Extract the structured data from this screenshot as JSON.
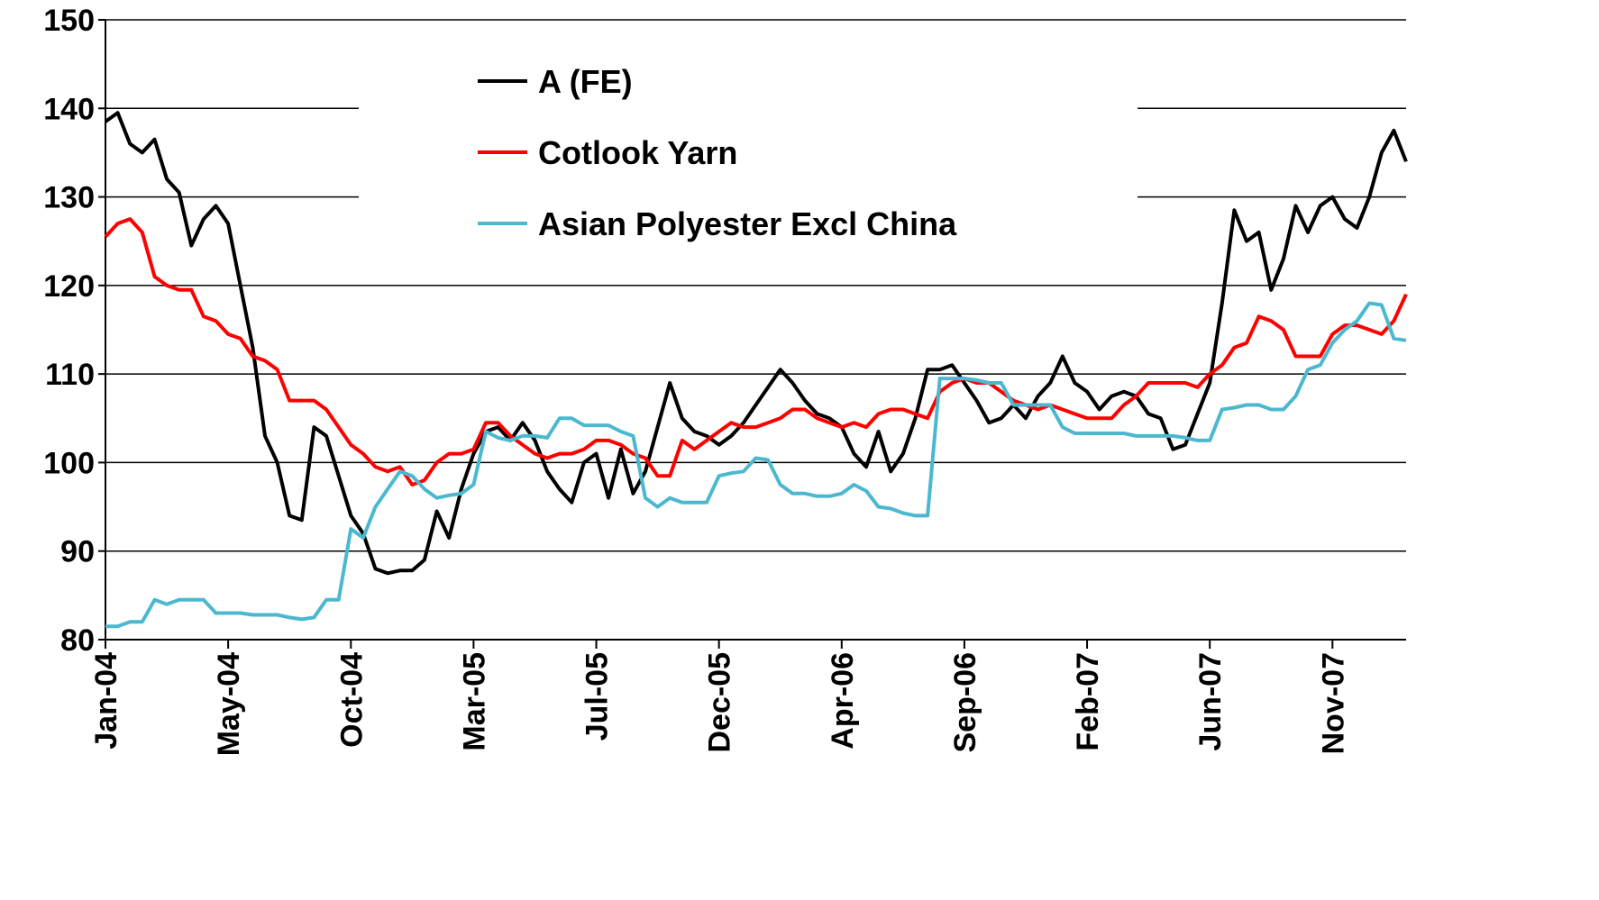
{
  "chart_data": {
    "type": "line",
    "categories": [
      "Jan-04",
      null,
      null,
      null,
      null,
      null,
      null,
      null,
      null,
      null,
      "May-04",
      null,
      null,
      null,
      null,
      null,
      null,
      null,
      null,
      null,
      "Oct-04",
      null,
      null,
      null,
      null,
      null,
      null,
      null,
      null,
      null,
      "Mar-05",
      null,
      null,
      null,
      null,
      null,
      null,
      null,
      null,
      null,
      "Jul-05",
      null,
      null,
      null,
      null,
      null,
      null,
      null,
      null,
      null,
      "Dec-05",
      null,
      null,
      null,
      null,
      null,
      null,
      null,
      null,
      null,
      "Apr-06",
      null,
      null,
      null,
      null,
      null,
      null,
      null,
      null,
      null,
      "Sep-06",
      null,
      null,
      null,
      null,
      null,
      null,
      null,
      null,
      null,
      "Feb-07",
      null,
      null,
      null,
      null,
      null,
      null,
      null,
      null,
      null,
      "Jun-07",
      null,
      null,
      null,
      null,
      null,
      null,
      null,
      null,
      null,
      "Nov-07",
      null,
      null,
      null,
      null,
      null,
      null
    ],
    "series": [
      {
        "name": "A (FE)",
        "color": "#000000",
        "values": [
          138.5,
          139.5,
          136,
          135,
          136.5,
          132,
          130.5,
          124.5,
          127.5,
          129,
          127,
          120,
          113,
          103,
          100,
          94,
          93.5,
          104,
          103,
          98.5,
          94,
          92,
          88,
          87.5,
          87.8,
          87.8,
          89,
          94.5,
          91.5,
          97,
          101,
          103.5,
          104,
          102.5,
          104.5,
          102.5,
          99,
          97,
          95.5,
          100,
          101,
          96,
          101.5,
          96.5,
          99,
          104,
          109,
          105,
          103.5,
          103,
          102,
          103,
          104.5,
          106.5,
          108.5,
          110.5,
          109,
          107,
          105.5,
          105,
          104,
          101,
          99.5,
          103.5,
          99,
          101,
          105,
          110.5,
          110.5,
          111,
          109,
          107,
          104.5,
          105,
          106.5,
          105,
          107.5,
          109,
          112,
          109,
          108,
          106,
          107.5,
          108,
          107.5,
          105.5,
          105,
          101.5,
          102,
          105.5,
          109,
          118,
          128.5,
          125,
          126,
          119.5,
          123,
          129,
          126,
          129,
          130,
          127.5,
          126.5,
          130,
          135,
          137.5,
          134
        ]
      },
      {
        "name": "Cotlook Yarn",
        "color": "#ff0000",
        "values": [
          125.5,
          127,
          127.5,
          126,
          121,
          120,
          119.5,
          119.5,
          116.5,
          116,
          114.5,
          114,
          112,
          111.5,
          110.5,
          107,
          107,
          107,
          106,
          104,
          102,
          101,
          99.5,
          99,
          99.5,
          97.5,
          98,
          100,
          101,
          101,
          101.5,
          104.5,
          104.5,
          103,
          102,
          101,
          100.5,
          101,
          101,
          101.5,
          102.5,
          102.5,
          102,
          101,
          100.5,
          98.5,
          98.5,
          102.5,
          101.5,
          102.5,
          103.5,
          104.5,
          104,
          104,
          104.5,
          105,
          106,
          106,
          105,
          104.5,
          104,
          104.5,
          104,
          105.5,
          106,
          106,
          105.5,
          105,
          108,
          109,
          109.5,
          109,
          109,
          108,
          107,
          106.5,
          106,
          106.5,
          106,
          105.5,
          105,
          105,
          105,
          106.5,
          107.5,
          109,
          109,
          109,
          109,
          108.5,
          110,
          111,
          113,
          113.5,
          116.5,
          116,
          115,
          112,
          112,
          112,
          114.5,
          115.5,
          115.5,
          115,
          114.5,
          116,
          119
        ]
      },
      {
        "name": "Asian Polyester Excl China",
        "color": "#4bb8d0",
        "values": [
          81.5,
          81.5,
          82,
          82,
          84.5,
          84,
          84.5,
          84.5,
          84.5,
          83,
          83,
          83,
          82.8,
          82.8,
          82.8,
          82.5,
          82.3,
          82.5,
          84.5,
          84.5,
          92.5,
          91.5,
          95,
          97,
          99,
          98.5,
          97,
          96,
          96.3,
          96.5,
          97.5,
          103.5,
          102.8,
          102.5,
          103,
          103,
          102.8,
          105,
          105,
          104.2,
          104.2,
          104.2,
          103.5,
          103,
          96,
          95,
          96,
          95.5,
          95.5,
          95.5,
          98.5,
          98.8,
          99,
          100.5,
          100.3,
          97.5,
          96.5,
          96.5,
          96.2,
          96.2,
          96.5,
          97.5,
          96.8,
          95,
          94.8,
          94.3,
          94,
          94,
          109.5,
          109.5,
          109.5,
          109.3,
          109,
          109,
          106.5,
          106.5,
          106.5,
          106.5,
          104,
          103.3,
          103.3,
          103.3,
          103.3,
          103.3,
          103,
          103,
          103,
          103,
          102.8,
          102.5,
          102.5,
          106,
          106.2,
          106.5,
          106.5,
          106,
          106,
          107.5,
          110.5,
          111,
          113.5,
          115,
          116,
          118,
          117.8,
          114,
          113.8
        ]
      }
    ],
    "ylim": [
      80,
      150
    ],
    "yticks": [
      80,
      90,
      100,
      110,
      120,
      130,
      140,
      150
    ],
    "grid": true
  }
}
